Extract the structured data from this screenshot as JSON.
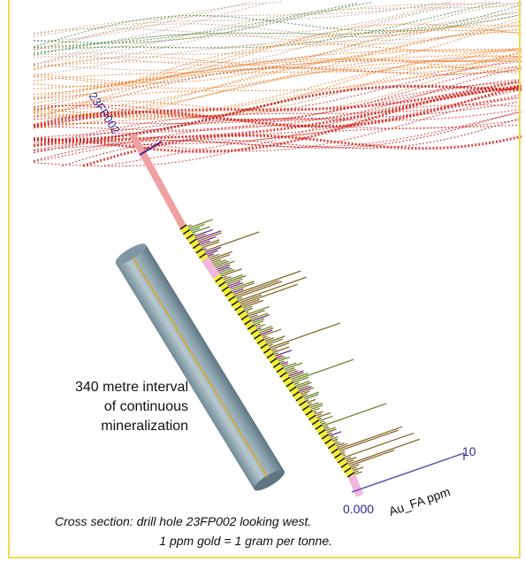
{
  "hole_label": "23FP002",
  "annotation": [
    "340 metre interval",
    "of continuous",
    "mineralization"
  ],
  "axis": {
    "label": "Au_FA ppm",
    "min_label": "0.000",
    "max_label": "10"
  },
  "caption": [
    "Cross section: drill hole 23FP002 looking west.",
    "1 ppm gold = 1 gram per tonne."
  ]
}
